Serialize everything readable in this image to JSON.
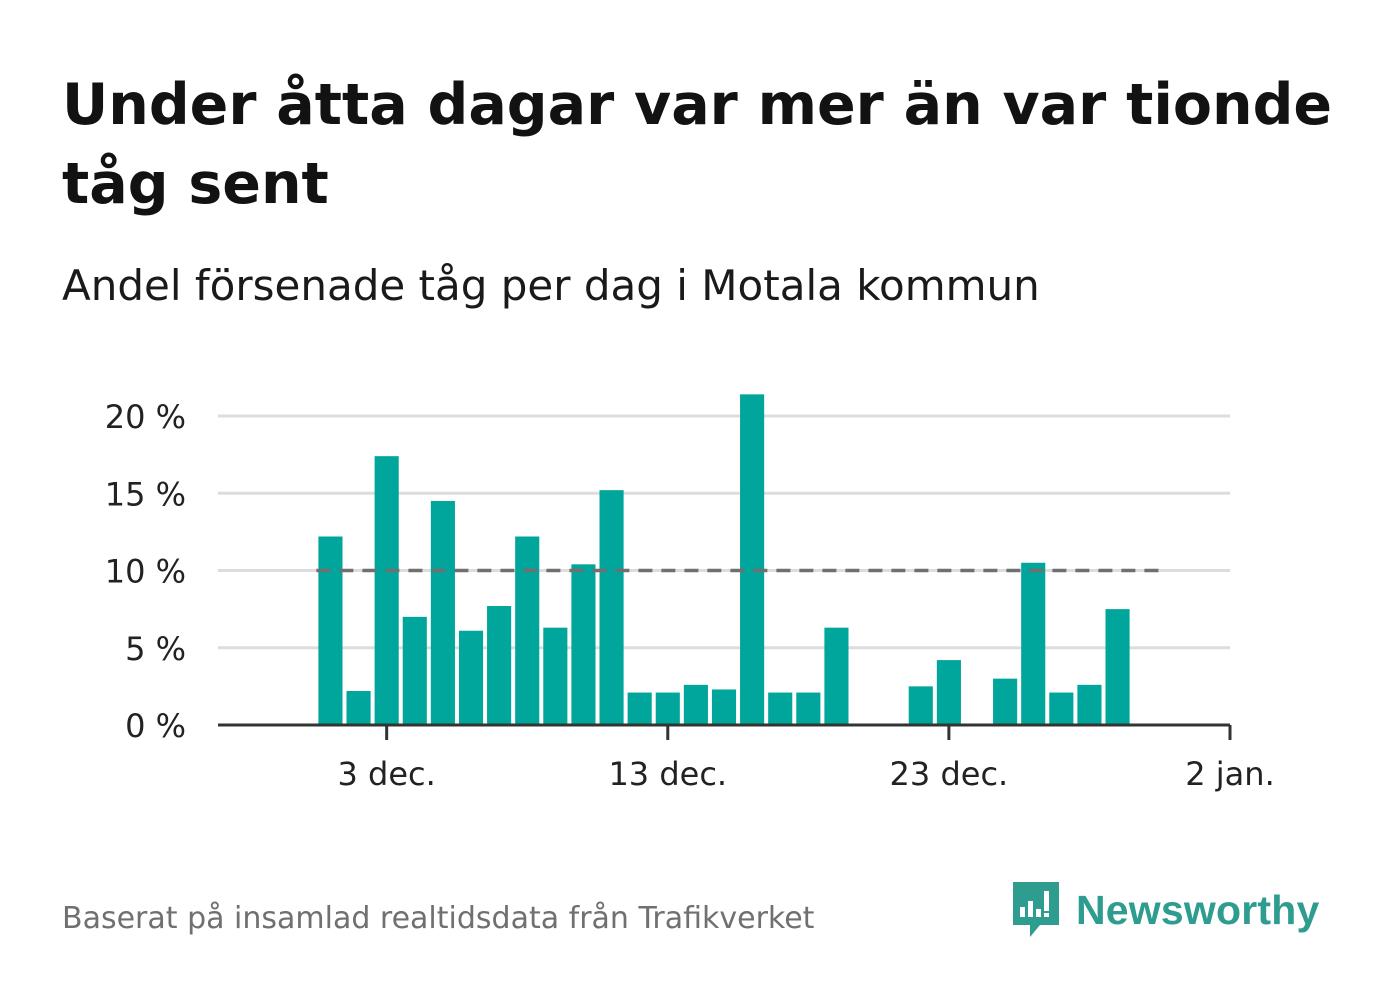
{
  "title": "Under åtta dagar var mer än var tionde tåg sent",
  "subtitle": "Andel försenade tåg per dag i Motala kommun",
  "footer": "Baserat på insamlad realtidsdata från Trafikverket",
  "brand": {
    "name": "Newsworthy",
    "icon": "newsworthy-logo-icon",
    "color": "#2e9c8f"
  },
  "colors": {
    "bar": "#00a59b",
    "reference_line": "#707070",
    "grid": "#dddddd",
    "axis": "#333333"
  },
  "chart_data": {
    "type": "bar",
    "x_unit": "day",
    "x": [
      "2023-12-01",
      "2023-12-02",
      "2023-12-03",
      "2023-12-04",
      "2023-12-05",
      "2023-12-06",
      "2023-12-07",
      "2023-12-08",
      "2023-12-09",
      "2023-12-10",
      "2023-12-11",
      "2023-12-12",
      "2023-12-13",
      "2023-12-14",
      "2023-12-15",
      "2023-12-16",
      "2023-12-17",
      "2023-12-18",
      "2023-12-19",
      "2023-12-20",
      "2023-12-21",
      "2023-12-22",
      "2023-12-23",
      "2023-12-24",
      "2023-12-25",
      "2023-12-26",
      "2023-12-27",
      "2023-12-28",
      "2023-12-29",
      "2023-12-30",
      "2023-12-31"
    ],
    "values": [
      12.2,
      2.2,
      17.4,
      7.0,
      14.5,
      6.1,
      7.7,
      12.2,
      6.3,
      10.4,
      15.2,
      2.1,
      2.1,
      2.6,
      2.3,
      21.4,
      2.1,
      2.1,
      6.3,
      0,
      0,
      2.5,
      4.2,
      0,
      3.0,
      10.5,
      2.1,
      2.6,
      7.5,
      0,
      0
    ],
    "reference_line": {
      "value": 10,
      "style": "dashed",
      "from": "2023-12-01",
      "to": "2023-12-31"
    },
    "ylim": [
      0,
      22
    ],
    "y_ticks": [
      0,
      5,
      10,
      15,
      20
    ],
    "y_tick_labels": [
      "0 %",
      "5 %",
      "10 %",
      "15 %",
      "20 %"
    ],
    "x_ticks": [
      "2023-12-03",
      "2023-12-13",
      "2023-12-23",
      "2024-01-02"
    ],
    "x_tick_labels": [
      "3 dec.",
      "13 dec.",
      "23 dec.",
      "2 jan."
    ],
    "xlim": [
      "2023-11-27",
      "2024-01-02"
    ],
    "grid": true,
    "legend": "none"
  }
}
